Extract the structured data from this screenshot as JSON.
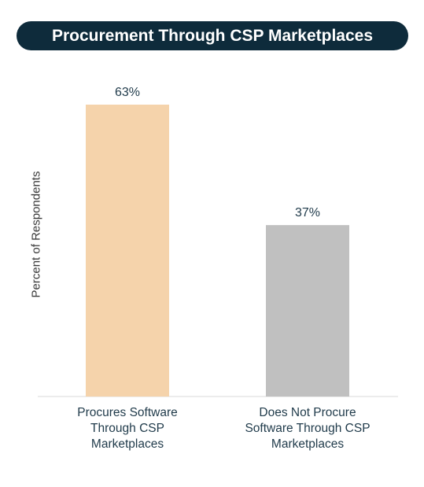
{
  "title": "Procurement Through CSP Marketplaces",
  "chart_data": {
    "type": "bar",
    "ylabel": "Percent of Respondents",
    "xlabel": "",
    "categories": [
      "Procures Software Through CSP Marketplaces",
      "Does Not Procure Software Through CSP Marketplaces"
    ],
    "category_lines": [
      [
        "Procures Software",
        "Through CSP",
        "Marketplaces"
      ],
      [
        "Does Not Procure",
        "Software Through CSP",
        "Marketplaces"
      ]
    ],
    "values": [
      63,
      37
    ],
    "value_labels": [
      "63%",
      "37%"
    ],
    "ylim": [
      0,
      63
    ],
    "colors": [
      "#f5d3ab",
      "#c0c0c0"
    ],
    "grid": false
  }
}
